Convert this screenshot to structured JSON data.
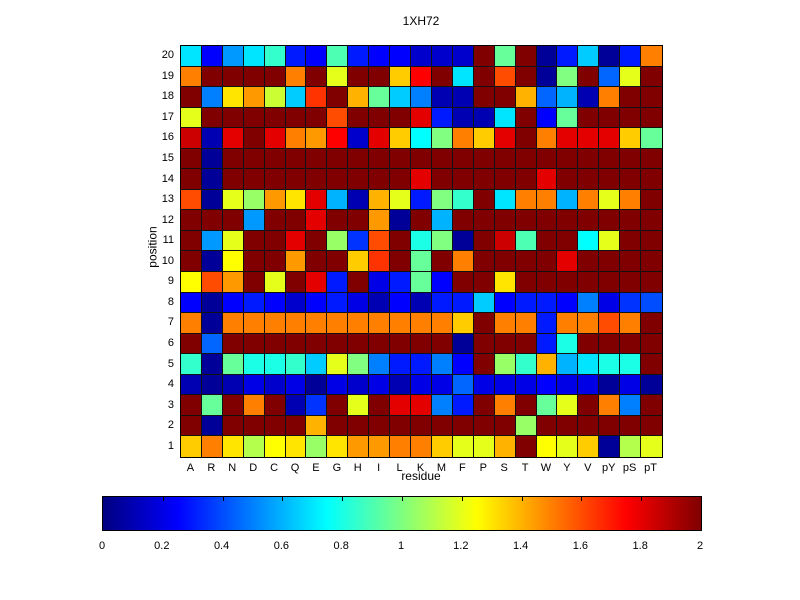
{
  "title": "1XH72",
  "chart_data": {
    "type": "heatmap",
    "title": "1XH72",
    "xlabel": "residue",
    "ylabel": "position",
    "colormap": "jet",
    "zlim": [
      0,
      2
    ],
    "grid": "on",
    "legend_position": "colorbar-bottom",
    "x_categories": [
      "A",
      "R",
      "N",
      "D",
      "C",
      "Q",
      "E",
      "G",
      "H",
      "I",
      "L",
      "K",
      "M",
      "F",
      "P",
      "S",
      "T",
      "W",
      "Y",
      "V",
      "pY",
      "pS",
      "pT"
    ],
    "y_categories": [
      "20",
      "19",
      "18",
      "17",
      "16",
      "15",
      "14",
      "13",
      "12",
      "11",
      "10",
      "9",
      "8",
      "7",
      "6",
      "5",
      "4",
      "3",
      "2",
      "1"
    ],
    "colorbar_ticks": [
      "0",
      "0.2",
      "0.4",
      "0.6",
      "0.8",
      "1",
      "1.2",
      "1.4",
      "1.6",
      "1.8",
      "2"
    ],
    "values": [
      [
        0.7,
        0.25,
        0.55,
        0.7,
        0.85,
        0.3,
        0.25,
        0.9,
        0.3,
        0.25,
        0.25,
        0.15,
        0.15,
        0.15,
        2.0,
        0.95,
        2.0,
        0.05,
        0.3,
        0.65,
        0.05,
        0.3,
        1.5
      ],
      [
        1.5,
        2.0,
        2.0,
        2.0,
        2.0,
        1.5,
        2.0,
        1.2,
        2.0,
        2.0,
        1.35,
        1.75,
        2.0,
        0.7,
        2.0,
        1.6,
        2.0,
        0.05,
        1.0,
        2.0,
        0.45,
        1.2,
        2.0
      ],
      [
        2.0,
        0.5,
        1.3,
        1.45,
        1.15,
        0.65,
        1.65,
        2.0,
        1.4,
        0.95,
        0.65,
        0.5,
        0.1,
        0.1,
        2.0,
        2.0,
        1.4,
        0.45,
        0.6,
        0.1,
        1.5,
        2.0,
        2.0
      ],
      [
        1.2,
        2.0,
        2.0,
        2.0,
        2.0,
        2.0,
        2.0,
        1.6,
        2.0,
        2.0,
        2.0,
        1.8,
        0.3,
        0.1,
        0.1,
        0.7,
        2.0,
        0.25,
        0.95,
        2.0,
        2.0,
        2.0,
        2.0
      ],
      [
        1.85,
        0.1,
        1.8,
        2.0,
        1.8,
        1.5,
        1.45,
        1.75,
        0.15,
        1.8,
        1.35,
        0.75,
        1.0,
        1.5,
        1.35,
        1.8,
        2.0,
        1.5,
        1.8,
        1.8,
        1.8,
        1.35,
        0.95
      ],
      [
        2.0,
        0.05,
        2.0,
        2.0,
        2.0,
        2.0,
        2.0,
        2.0,
        2.0,
        2.0,
        2.0,
        2.0,
        2.0,
        2.0,
        2.0,
        2.0,
        2.0,
        2.0,
        2.0,
        2.0,
        2.0,
        2.0,
        2.0
      ],
      [
        2.0,
        0.05,
        2.0,
        2.0,
        2.0,
        2.0,
        2.0,
        2.0,
        2.0,
        2.0,
        2.0,
        1.8,
        2.0,
        2.0,
        2.0,
        2.0,
        2.0,
        1.8,
        2.0,
        2.0,
        2.0,
        2.0,
        2.0
      ],
      [
        1.6,
        0.05,
        1.2,
        1.05,
        1.45,
        1.3,
        1.8,
        0.6,
        0.1,
        1.4,
        1.2,
        0.3,
        1.0,
        0.85,
        2.0,
        0.7,
        1.5,
        1.5,
        0.6,
        1.5,
        1.2,
        1.5,
        2.0
      ],
      [
        2.0,
        2.0,
        2.0,
        0.55,
        2.0,
        2.0,
        1.8,
        2.0,
        2.0,
        1.45,
        0.05,
        2.0,
        0.6,
        2.0,
        2.0,
        2.0,
        2.0,
        2.0,
        2.0,
        2.0,
        2.0,
        2.0,
        2.0
      ],
      [
        2.0,
        0.55,
        1.2,
        2.0,
        2.0,
        1.8,
        2.0,
        1.05,
        0.35,
        1.6,
        2.0,
        0.8,
        1.0,
        0.05,
        2.0,
        1.85,
        0.9,
        2.0,
        2.0,
        0.75,
        1.2,
        2.0,
        2.0
      ],
      [
        2.0,
        0.05,
        1.25,
        2.0,
        2.0,
        1.45,
        2.0,
        2.0,
        1.35,
        1.65,
        2.0,
        0.95,
        2.0,
        1.5,
        2.0,
        2.0,
        2.0,
        2.0,
        1.8,
        2.0,
        2.0,
        2.0,
        2.0
      ],
      [
        1.25,
        1.6,
        1.45,
        2.0,
        1.2,
        2.0,
        1.8,
        0.3,
        2.0,
        0.2,
        0.3,
        0.95,
        0.25,
        2.0,
        2.0,
        1.3,
        2.0,
        2.0,
        2.0,
        2.0,
        2.0,
        2.0,
        2.0
      ],
      [
        0.25,
        0.05,
        0.25,
        0.3,
        0.25,
        0.15,
        0.25,
        0.3,
        0.2,
        0.1,
        0.25,
        0.1,
        0.3,
        0.3,
        0.65,
        0.25,
        0.3,
        0.3,
        0.25,
        0.5,
        0.2,
        0.35,
        0.4
      ],
      [
        1.5,
        0.05,
        1.5,
        1.5,
        1.5,
        1.5,
        1.5,
        1.5,
        1.5,
        1.5,
        1.5,
        1.5,
        1.5,
        1.35,
        2.0,
        1.5,
        1.5,
        0.3,
        1.5,
        1.5,
        1.6,
        1.5,
        2.0
      ],
      [
        2.0,
        0.45,
        2.0,
        2.0,
        2.0,
        2.0,
        2.0,
        2.0,
        2.0,
        2.0,
        2.0,
        2.0,
        2.0,
        0.05,
        2.0,
        2.0,
        2.0,
        0.3,
        0.8,
        2.0,
        2.0,
        2.0,
        2.0
      ],
      [
        0.85,
        0.05,
        0.95,
        0.8,
        0.8,
        0.85,
        0.65,
        1.2,
        1.0,
        0.5,
        0.3,
        0.3,
        0.5,
        0.25,
        2.0,
        1.05,
        0.85,
        1.4,
        0.6,
        0.7,
        0.8,
        0.8,
        2.0
      ],
      [
        0.1,
        0.05,
        0.1,
        0.2,
        0.15,
        0.2,
        0.05,
        0.2,
        0.15,
        0.2,
        0.1,
        0.2,
        0.2,
        0.45,
        0.2,
        0.2,
        0.2,
        0.25,
        0.2,
        0.2,
        0.05,
        0.2,
        0.05
      ],
      [
        2.0,
        0.95,
        2.0,
        1.5,
        2.0,
        0.1,
        0.35,
        2.0,
        1.2,
        2.0,
        1.8,
        1.8,
        0.5,
        0.3,
        2.0,
        1.5,
        2.0,
        0.95,
        1.2,
        2.0,
        1.5,
        0.5,
        2.0
      ],
      [
        2.0,
        0.05,
        2.0,
        2.0,
        2.0,
        2.0,
        1.4,
        2.0,
        2.0,
        2.0,
        2.0,
        2.0,
        2.0,
        2.0,
        2.0,
        2.0,
        1.05,
        2.0,
        2.0,
        2.0,
        2.0,
        2.0,
        2.0
      ],
      [
        1.35,
        1.5,
        1.3,
        1.1,
        1.25,
        1.3,
        1.05,
        1.3,
        1.45,
        1.45,
        1.5,
        1.5,
        1.35,
        1.2,
        1.2,
        1.4,
        2.0,
        1.25,
        1.2,
        1.35,
        0.05,
        1.1,
        1.2
      ]
    ]
  }
}
